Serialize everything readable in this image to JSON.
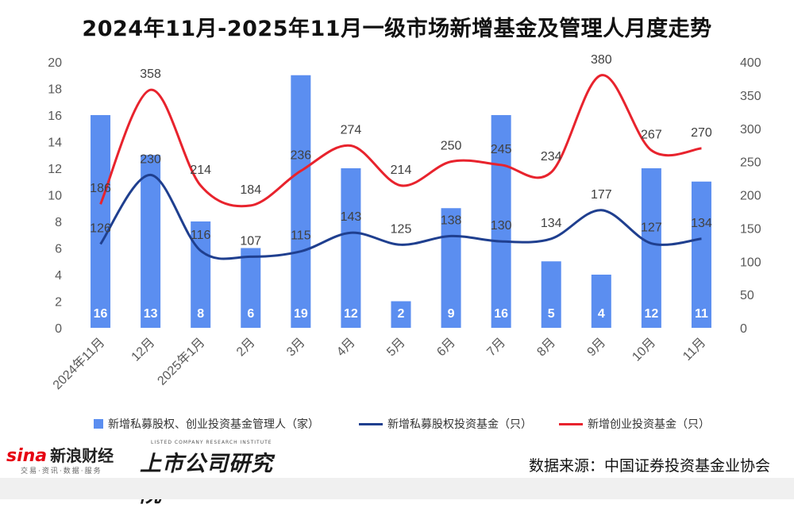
{
  "title": "2024年11月-2025年11月一级市场新增基金及管理人月度走势",
  "chart_data": {
    "type": "bar+line",
    "categories": [
      "2024年11月",
      "12月",
      "2025年1月",
      "2月",
      "3月",
      "4月",
      "5月",
      "6月",
      "7月",
      "8月",
      "9月",
      "10月",
      "11月"
    ],
    "series": [
      {
        "name": "新增私募股权、创业投资基金管理人（家）",
        "type": "bar",
        "axis": "left",
        "color": "#5b8ef0",
        "values": [
          16,
          13,
          8,
          6,
          19,
          12,
          2,
          9,
          16,
          5,
          4,
          12,
          11
        ]
      },
      {
        "name": "新增私募股权投资基金（只）",
        "type": "line",
        "axis": "right",
        "color": "#1f3f8f",
        "values": [
          126,
          230,
          116,
          107,
          115,
          143,
          125,
          138,
          130,
          134,
          177,
          127,
          134
        ]
      },
      {
        "name": "新增创业投资基金（只）",
        "type": "line",
        "axis": "right",
        "color": "#e8232d",
        "values": [
          186,
          358,
          214,
          184,
          236,
          274,
          214,
          250,
          245,
          234,
          380,
          267,
          270
        ]
      }
    ],
    "y_left": {
      "min": 0,
      "max": 20,
      "step": 2
    },
    "y_right": {
      "min": 0,
      "max": 400,
      "step": 50
    },
    "grid": false,
    "legend_position": "bottom"
  },
  "legend": {
    "bar": "新增私募股权、创业投资基金管理人（家）",
    "pe": "新增私募股权投资基金（只）",
    "vc": "新增创业投资基金（只）"
  },
  "footer": {
    "sina_logo": "sina新浪财经",
    "sina_sub": "交易·资讯·数据·服务",
    "institute_small": "LISTED COMPANY RESEARCH INSTITUTE",
    "institute": "上市公司研究院",
    "source": "数据来源：中国证券投资基金业协会"
  }
}
